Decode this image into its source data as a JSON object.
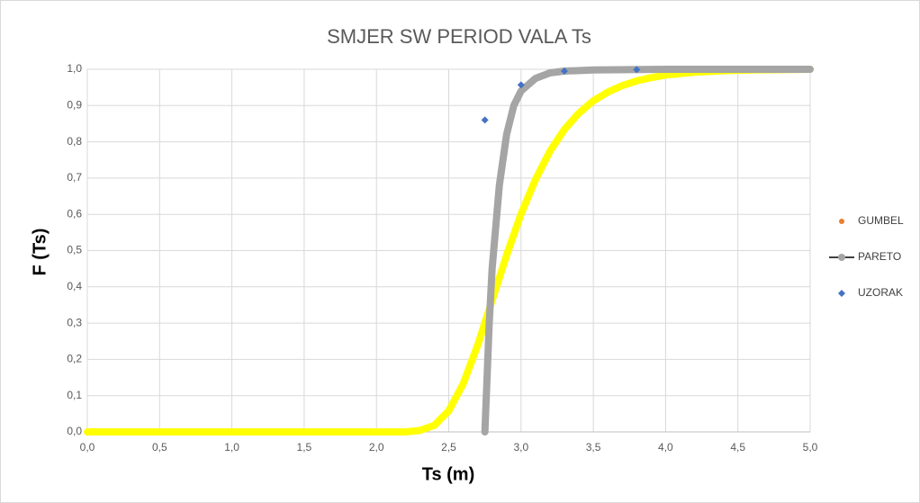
{
  "chart_data": {
    "type": "line",
    "title": "SMJER SW PERIOD VALA Ts",
    "x_label": "Ts (m)",
    "y_label": "F (Ts)",
    "xlim": [
      0,
      5
    ],
    "ylim": [
      0,
      1
    ],
    "xticks": [
      {
        "value": 0,
        "label": "0,0"
      },
      {
        "value": 0.5,
        "label": "0,5"
      },
      {
        "value": 1,
        "label": "1,0"
      },
      {
        "value": 1.5,
        "label": "1,5"
      },
      {
        "value": 2,
        "label": "2,0"
      },
      {
        "value": 2.5,
        "label": "2,5"
      },
      {
        "value": 3,
        "label": "3,0"
      },
      {
        "value": 3.5,
        "label": "3,5"
      },
      {
        "value": 4,
        "label": "4,0"
      },
      {
        "value": 4.5,
        "label": "4,5"
      },
      {
        "value": 5,
        "label": "5,0"
      }
    ],
    "yticks": [
      {
        "value": 0,
        "label": "0,0"
      },
      {
        "value": 0.1,
        "label": "0,1"
      },
      {
        "value": 0.2,
        "label": "0,2"
      },
      {
        "value": 0.3,
        "label": "0,3"
      },
      {
        "value": 0.4,
        "label": "0,4"
      },
      {
        "value": 0.5,
        "label": "0,5"
      },
      {
        "value": 0.6,
        "label": "0,6"
      },
      {
        "value": 0.7,
        "label": "0,7"
      },
      {
        "value": 0.8,
        "label": "0,8"
      },
      {
        "value": 0.9,
        "label": "0,9"
      },
      {
        "value": 1,
        "label": "1,0"
      }
    ],
    "grid": true,
    "legend": "right",
    "series": [
      {
        "name": "GUMBEL",
        "style": "line",
        "color": "#ed7d31",
        "line_color": "#ffff00",
        "x": [
          0,
          0.5,
          1,
          1.5,
          2,
          2.2,
          2.3,
          2.4,
          2.5,
          2.6,
          2.7,
          2.8,
          2.9,
          3.0,
          3.1,
          3.2,
          3.3,
          3.4,
          3.5,
          3.6,
          3.7,
          3.8,
          3.9,
          4.0,
          4.2,
          4.4,
          4.6,
          4.8,
          5.0
        ],
        "values": [
          0,
          0,
          0,
          0,
          0,
          0,
          0.004,
          0.018,
          0.058,
          0.133,
          0.239,
          0.363,
          0.487,
          0.601,
          0.696,
          0.774,
          0.834,
          0.879,
          0.913,
          0.937,
          0.955,
          0.968,
          0.977,
          0.984,
          0.992,
          0.996,
          0.998,
          0.999,
          1.0
        ]
      },
      {
        "name": "PARETO",
        "style": "line",
        "color": "#a5a5a5",
        "x": [
          2.75,
          2.76,
          2.78,
          2.8,
          2.85,
          2.9,
          2.95,
          3.0,
          3.1,
          3.2,
          3.3,
          3.5,
          4.0,
          5.0
        ],
        "values": [
          0,
          0.1,
          0.3,
          0.45,
          0.68,
          0.82,
          0.9,
          0.94,
          0.975,
          0.99,
          0.995,
          0.998,
          1,
          1
        ]
      },
      {
        "name": "UZORAK",
        "style": "markers",
        "color": "#4472c4",
        "x": [
          2.75,
          3.0,
          3.3,
          3.8
        ],
        "values": [
          0.86,
          0.957,
          0.995,
          0.999
        ]
      }
    ]
  }
}
